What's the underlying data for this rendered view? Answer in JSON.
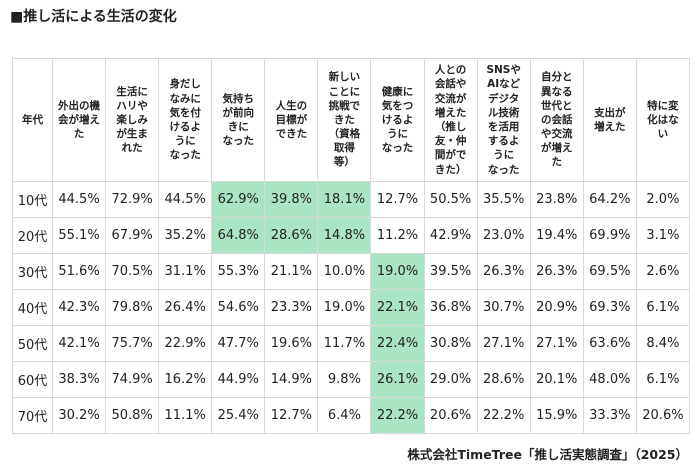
{
  "title": "■推し活による生活の変化",
  "table": {
    "headers": [
      "年代",
      "外出の機\n会が増え\nた",
      "生活に\nハリや\n楽しみ\nが生ま\nれた",
      "身だし\nなみに\n気を付\nけるよ\nうに\nなった",
      "気持ち\nが前向\nきに\nなった",
      "人生の\n目標が\nできた",
      "新しい\nことに\n挑戦で\nきた\n（資格\n取得\n等）",
      "健康に\n気をつ\nけるよ\nうに\nなった",
      "人との\n会話や\n交流が\n増えた\n（推し\n友・仲\n間がで\nきた）",
      "SNSや\nAIなど\nデジタ\nル技術\nを活用\nするよ\nうに\nなった",
      "自分と\n異なる\n世代と\nの会話\nや交流\nが増え\nた",
      "支出が\n増えた",
      "特に変\n化はな\nい"
    ],
    "rows": [
      [
        "10代",
        "44.5%",
        "72.9%",
        "44.5%",
        "62.9%",
        "39.8%",
        "18.1%",
        "12.7%",
        "50.5%",
        "35.5%",
        "23.8%",
        "64.2%",
        "2.0%"
      ],
      [
        "20代",
        "55.1%",
        "67.9%",
        "35.2%",
        "64.8%",
        "28.6%",
        "14.8%",
        "11.2%",
        "42.9%",
        "23.0%",
        "19.4%",
        "69.9%",
        "3.1%"
      ],
      [
        "30代",
        "51.6%",
        "70.5%",
        "31.1%",
        "55.3%",
        "21.1%",
        "10.0%",
        "19.0%",
        "39.5%",
        "26.3%",
        "26.3%",
        "69.5%",
        "2.6%"
      ],
      [
        "40代",
        "42.3%",
        "79.8%",
        "26.4%",
        "54.6%",
        "23.3%",
        "19.0%",
        "22.1%",
        "36.8%",
        "30.7%",
        "20.9%",
        "69.3%",
        "6.1%"
      ],
      [
        "50代",
        "42.1%",
        "75.7%",
        "22.9%",
        "47.7%",
        "19.6%",
        "11.7%",
        "22.4%",
        "30.8%",
        "27.1%",
        "27.1%",
        "63.6%",
        "8.4%"
      ],
      [
        "60代",
        "38.3%",
        "74.9%",
        "16.2%",
        "44.9%",
        "14.9%",
        "9.8%",
        "26.1%",
        "29.0%",
        "28.6%",
        "20.1%",
        "48.0%",
        "6.1%"
      ],
      [
        "70代",
        "30.2%",
        "50.8%",
        "11.1%",
        "25.4%",
        "12.7%",
        "6.4%",
        "22.2%",
        "20.6%",
        "22.2%",
        "15.9%",
        "33.3%",
        "20.6%"
      ]
    ],
    "highlight": {
      "color": "#a9e4c4",
      "cells": [
        [
          0,
          4
        ],
        [
          0,
          5
        ],
        [
          0,
          6
        ],
        [
          1,
          4
        ],
        [
          1,
          5
        ],
        [
          1,
          6
        ],
        [
          2,
          7
        ],
        [
          3,
          7
        ],
        [
          4,
          7
        ],
        [
          5,
          7
        ],
        [
          6,
          7
        ]
      ]
    }
  },
  "source": "株式会社TimeTree「推し活実態調査」（2025）"
}
